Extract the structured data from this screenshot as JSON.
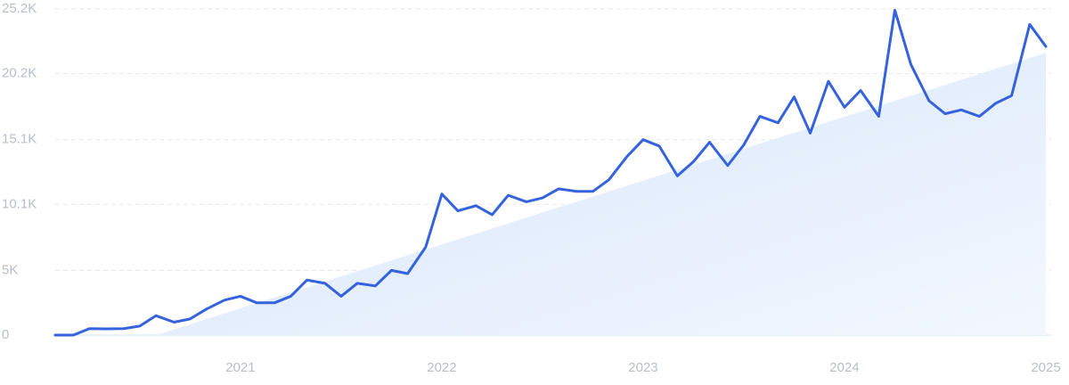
{
  "chart_data": {
    "type": "line",
    "xlim": [
      2020.08,
      2025
    ],
    "xticks": [
      2021,
      2022,
      2023,
      2024,
      2025
    ],
    "ylim": [
      0,
      25200
    ],
    "yticks": [
      0,
      {
        "value": 5000,
        "label": "5K"
      },
      {
        "value": 10100,
        "label": "10.1K"
      },
      {
        "value": 15100,
        "label": "15.1K"
      },
      {
        "value": 20200,
        "label": "20.2K"
      },
      {
        "value": 25200,
        "label": "25.2K"
      }
    ],
    "grid": true,
    "series": [
      {
        "color": "#dde9fb",
        "fill": "area",
        "x": [
          2020.58,
          2025
        ],
        "values": [
          0,
          21800
        ]
      },
      {
        "color": "#3562dd",
        "x": [
          2020.08,
          2020.17,
          2020.25,
          2020.33,
          2020.42,
          2020.5,
          2020.58,
          2020.67,
          2020.75,
          2020.83,
          2020.92,
          2021,
          2021.08,
          2021.17,
          2021.25,
          2021.33,
          2021.42,
          2021.5,
          2021.58,
          2021.67,
          2021.75,
          2021.83,
          2021.92,
          2022,
          2022.08,
          2022.17,
          2022.25,
          2022.33,
          2022.42,
          2022.5,
          2022.58,
          2022.67,
          2022.75,
          2022.83,
          2022.92,
          2023,
          2023.08,
          2023.17,
          2023.25,
          2023.33,
          2023.42,
          2023.5,
          2023.58,
          2023.67,
          2023.75,
          2023.83,
          2023.92,
          2024,
          2024.08,
          2024.17,
          2024.25,
          2024.33,
          2024.42,
          2024.5,
          2024.58,
          2024.67,
          2024.75,
          2024.83,
          2024.92,
          2025
        ],
        "values": [
          0,
          0,
          500,
          480,
          500,
          700,
          1500,
          1000,
          1250,
          2000,
          2700,
          3000,
          2500,
          2500,
          3000,
          4250,
          4000,
          3000,
          4000,
          3800,
          5000,
          4750,
          6800,
          10900,
          9600,
          10000,
          9300,
          10800,
          10300,
          10600,
          11300,
          11100,
          11100,
          12000,
          13800,
          15100,
          14600,
          12300,
          13400,
          14900,
          13100,
          14700,
          16900,
          16400,
          18400,
          15600,
          19600,
          17600,
          18900,
          16900,
          25100,
          20900,
          18100,
          17100,
          17400,
          16900,
          17900,
          18500,
          24000,
          22300
        ]
      }
    ]
  }
}
